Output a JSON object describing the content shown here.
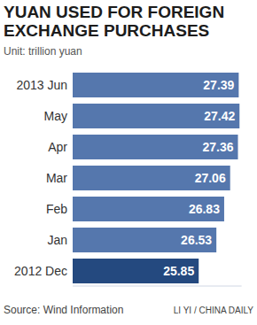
{
  "chart_data": {
    "type": "bar",
    "orientation": "horizontal",
    "title": "YUAN USED FOR FOREIGN EXCHANGE PURCHASES",
    "subtitle": "Unit: trillion yuan",
    "categories": [
      "2013 Jun",
      "May",
      "Apr",
      "Mar",
      "Feb",
      "Jan",
      "2012 Dec"
    ],
    "values": [
      27.39,
      27.42,
      27.36,
      27.06,
      26.83,
      26.53,
      25.85
    ],
    "colors": [
      "#5577ad",
      "#5577ad",
      "#5577ad",
      "#5577ad",
      "#5577ad",
      "#5577ad",
      "#24497f"
    ],
    "xlim": [
      21,
      27.5
    ],
    "data_labels": true,
    "tick_labels": "y",
    "grid": false,
    "annotations": [
      "Source: Wind Information",
      "LI YI / CHINA DAILY"
    ]
  }
}
